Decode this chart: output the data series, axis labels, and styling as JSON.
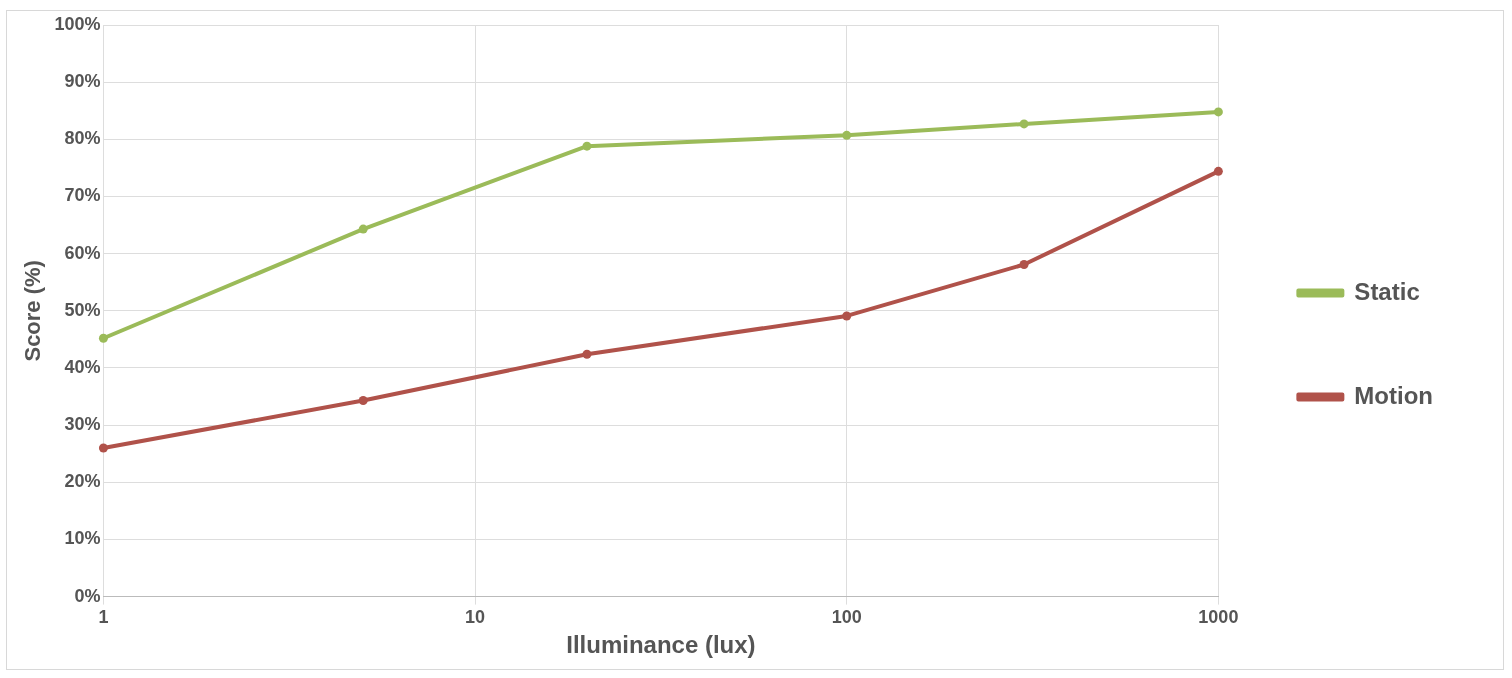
{
  "chart_data": {
    "type": "line",
    "xlabel": "Illuminance (lux)",
    "ylabel": "Score (%)",
    "x": [
      1,
      5,
      20,
      100,
      300,
      1000
    ],
    "series": [
      {
        "name": "Static",
        "color": "#9bbb59",
        "values": [
          45.2,
          64.3,
          78.8,
          80.7,
          82.7,
          84.8
        ]
      },
      {
        "name": "Motion",
        "color": "#b0524a",
        "values": [
          26.0,
          34.3,
          42.4,
          49.1,
          58.1,
          74.4
        ]
      }
    ],
    "log": "x",
    "xlim": [
      1,
      1000
    ],
    "xticks": [
      1,
      10,
      100,
      1000
    ],
    "ylim": [
      0,
      100
    ],
    "yticks": [
      {
        "value": 0,
        "label": "0%"
      },
      {
        "value": 10,
        "label": "10%"
      },
      {
        "value": 20,
        "label": "20%"
      },
      {
        "value": 30,
        "label": "30%"
      },
      {
        "value": 40,
        "label": "40%"
      },
      {
        "value": 50,
        "label": "50%"
      },
      {
        "value": 60,
        "label": "60%"
      },
      {
        "value": 70,
        "label": "70%"
      },
      {
        "value": 80,
        "label": "80%"
      },
      {
        "value": 90,
        "label": "90%"
      },
      {
        "value": 100,
        "label": "100%"
      }
    ],
    "grid": true,
    "legend": "right",
    "marker": "circle",
    "line_style": "solid"
  }
}
